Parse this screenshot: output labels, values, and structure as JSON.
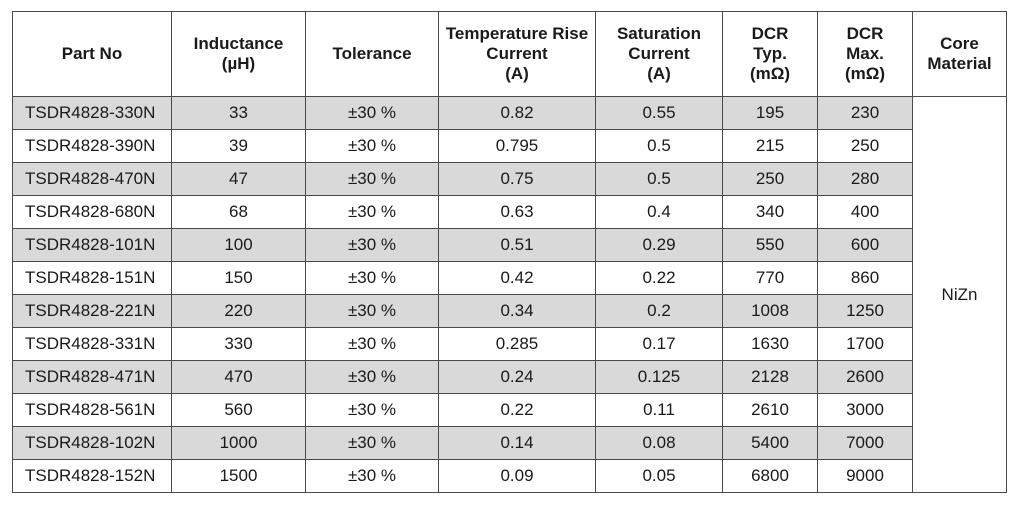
{
  "headers": {
    "part_no": [
      "Part No"
    ],
    "inductance": [
      "Inductance",
      "(µH)"
    ],
    "tolerance": [
      "Tolerance"
    ],
    "temp_rise": [
      "Temperature Rise",
      "Current",
      "(A)"
    ],
    "saturation": [
      "Saturation",
      "Current",
      "(A)"
    ],
    "dcr_typ": [
      "DCR",
      "Typ.",
      "(mΩ)"
    ],
    "dcr_max": [
      "DCR",
      "Max.",
      "(mΩ)"
    ],
    "core_material": [
      "Core",
      "Material"
    ]
  },
  "core_material": "NiZn",
  "rows": [
    [
      "TSDR4828-330N",
      "33",
      "±30 %",
      "0.82",
      "0.55",
      "195",
      "230"
    ],
    [
      "TSDR4828-390N",
      "39",
      "±30 %",
      "0.795",
      "0.5",
      "215",
      "250"
    ],
    [
      "TSDR4828-470N",
      "47",
      "±30 %",
      "0.75",
      "0.5",
      "250",
      "280"
    ],
    [
      "TSDR4828-680N",
      "68",
      "±30 %",
      "0.63",
      "0.4",
      "340",
      "400"
    ],
    [
      "TSDR4828-101N",
      "100",
      "±30 %",
      "0.51",
      "0.29",
      "550",
      "600"
    ],
    [
      "TSDR4828-151N",
      "150",
      "±30 %",
      "0.42",
      "0.22",
      "770",
      "860"
    ],
    [
      "TSDR4828-221N",
      "220",
      "±30 %",
      "0.34",
      "0.2",
      "1008",
      "1250"
    ],
    [
      "TSDR4828-331N",
      "330",
      "±30 %",
      "0.285",
      "0.17",
      "1630",
      "1700"
    ],
    [
      "TSDR4828-471N",
      "470",
      "±30 %",
      "0.24",
      "0.125",
      "2128",
      "2600"
    ],
    [
      "TSDR4828-561N",
      "560",
      "±30 %",
      "0.22",
      "0.11",
      "2610",
      "3000"
    ],
    [
      "TSDR4828-102N",
      "1000",
      "±30 %",
      "0.14",
      "0.08",
      "5400",
      "7000"
    ],
    [
      "TSDR4828-152N",
      "1500",
      "±30 %",
      "0.09",
      "0.05",
      "6800",
      "9000"
    ]
  ]
}
